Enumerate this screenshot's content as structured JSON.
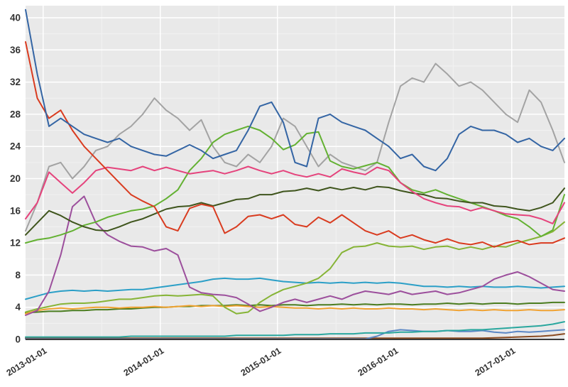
{
  "chart_data": {
    "type": "line",
    "title": "",
    "xlabel": "",
    "ylabel": "",
    "grid": true,
    "legend": "none",
    "styles": {
      "plot_background": "#e9e9e9",
      "grid_major": "#ffffff",
      "grid_minor": "#f2f2f2",
      "axis_line": "#3a3a3a",
      "tick_label_color": "#333333"
    },
    "x_axis": {
      "range": [
        2012.85,
        2017.45
      ],
      "tick_values": [
        2013,
        2014,
        2015,
        2016,
        2017
      ],
      "tick_labels": [
        "2013-01-01",
        "2014-01-01",
        "2015-01-01",
        "2016-01-01",
        "2017-01-01"
      ],
      "minor_tick_values": [
        2013.5,
        2014.5,
        2015.5,
        2016.5
      ]
    },
    "y_axis": {
      "range": [
        0,
        41.5
      ],
      "tick_values": [
        0,
        4,
        8,
        12,
        16,
        20,
        24,
        28,
        32,
        36,
        40
      ],
      "tick_labels": [
        "0",
        "4",
        "8",
        "12",
        "16",
        "20",
        "24",
        "28",
        "32",
        "36",
        "40"
      ],
      "minor_tick_values": [
        2,
        6,
        10,
        14,
        18,
        22,
        26,
        30,
        34,
        38
      ]
    },
    "x": [
      2012.85,
      2012.95,
      2013.05,
      2013.15,
      2013.25,
      2013.35,
      2013.45,
      2013.55,
      2013.65,
      2013.75,
      2013.85,
      2013.95,
      2014.05,
      2014.15,
      2014.25,
      2014.35,
      2014.45,
      2014.55,
      2014.65,
      2014.75,
      2014.85,
      2014.95,
      2015.05,
      2015.15,
      2015.25,
      2015.35,
      2015.45,
      2015.55,
      2015.65,
      2015.75,
      2015.85,
      2015.95,
      2016.05,
      2016.15,
      2016.25,
      2016.35,
      2016.45,
      2016.55,
      2016.65,
      2016.75,
      2016.85,
      2016.95,
      2017.05,
      2017.15,
      2017.25,
      2017.35,
      2017.45
    ],
    "series": [
      {
        "name": "brown",
        "color": "#8a4a1f",
        "values": [
          0.15,
          0.15,
          0.15,
          0.15,
          0.15,
          0.15,
          0.15,
          0.15,
          0.15,
          0.15,
          0.15,
          0.15,
          0.15,
          0.15,
          0.15,
          0.15,
          0.15,
          0.15,
          0.15,
          0.15,
          0.15,
          0.15,
          0.15,
          0.15,
          0.15,
          0.15,
          0.15,
          0.15,
          0.15,
          0.15,
          0.15,
          0.15,
          0.15,
          0.15,
          0.15,
          0.15,
          0.15,
          0.15,
          0.15,
          0.15,
          0.2,
          0.25,
          0.3,
          0.35,
          0.4,
          0.5,
          0.7
        ]
      },
      {
        "name": "light-blue",
        "color": "#5b87c5",
        "values": [
          0.05,
          0.05,
          0.05,
          0.05,
          0.05,
          0.05,
          0.05,
          0.05,
          0.05,
          0.05,
          0.05,
          0.05,
          0.05,
          0.05,
          0.05,
          0.05,
          0.05,
          0.05,
          0.05,
          0.05,
          0.05,
          0.05,
          0.05,
          0.05,
          0.05,
          0.05,
          0.05,
          0.05,
          0.05,
          0.05,
          0.4,
          1.0,
          1.2,
          1.1,
          1.0,
          1.0,
          1.1,
          1.0,
          1.0,
          1.1,
          0.9,
          0.8,
          1.0,
          0.9,
          1.0,
          1.1,
          1.2
        ]
      },
      {
        "name": "teal",
        "color": "#2aa79e",
        "values": [
          0.3,
          0.3,
          0.3,
          0.3,
          0.3,
          0.3,
          0.3,
          0.3,
          0.3,
          0.4,
          0.4,
          0.4,
          0.4,
          0.4,
          0.4,
          0.4,
          0.4,
          0.4,
          0.5,
          0.5,
          0.5,
          0.5,
          0.5,
          0.6,
          0.6,
          0.6,
          0.7,
          0.7,
          0.7,
          0.8,
          0.8,
          0.8,
          0.9,
          0.9,
          1.0,
          1.0,
          1.1,
          1.1,
          1.2,
          1.2,
          1.3,
          1.4,
          1.5,
          1.6,
          1.7,
          1.9,
          2.2
        ]
      },
      {
        "name": "forest-green",
        "color": "#4b7d20",
        "values": [
          3.3,
          3.4,
          3.5,
          3.5,
          3.6,
          3.6,
          3.7,
          3.7,
          3.8,
          3.8,
          3.9,
          4.0,
          4.0,
          4.1,
          4.1,
          4.2,
          4.2,
          4.2,
          4.3,
          4.2,
          4.3,
          4.2,
          4.3,
          4.3,
          4.2,
          4.3,
          4.3,
          4.4,
          4.3,
          4.4,
          4.3,
          4.4,
          4.4,
          4.3,
          4.4,
          4.4,
          4.5,
          4.4,
          4.5,
          4.4,
          4.5,
          4.5,
          4.4,
          4.5,
          4.5,
          4.6,
          4.6
        ]
      },
      {
        "name": "orange",
        "color": "#f0a232",
        "values": [
          3.2,
          3.6,
          3.8,
          3.9,
          3.8,
          3.9,
          4.0,
          4.0,
          3.9,
          4.0,
          4.0,
          4.1,
          4.0,
          4.1,
          4.2,
          4.1,
          4.2,
          4.1,
          4.2,
          4.1,
          4.0,
          4.1,
          4.0,
          3.9,
          3.9,
          3.8,
          3.9,
          3.8,
          3.9,
          3.8,
          3.8,
          3.9,
          3.8,
          3.8,
          3.7,
          3.8,
          3.7,
          3.6,
          3.7,
          3.6,
          3.7,
          3.6,
          3.6,
          3.7,
          3.6,
          3.6,
          3.7
        ]
      },
      {
        "name": "cyan",
        "color": "#2b9fc7",
        "values": [
          5.0,
          5.4,
          5.8,
          6.0,
          6.1,
          6.0,
          6.1,
          6.0,
          6.1,
          6.2,
          6.2,
          6.4,
          6.6,
          6.8,
          7.0,
          7.2,
          7.5,
          7.6,
          7.5,
          7.5,
          7.6,
          7.4,
          7.2,
          7.1,
          7.0,
          7.1,
          7.0,
          7.1,
          7.0,
          7.1,
          7.0,
          7.1,
          7.0,
          6.8,
          6.6,
          6.6,
          6.5,
          6.6,
          6.5,
          6.6,
          6.5,
          6.5,
          6.6,
          6.5,
          6.4,
          6.5,
          6.6
        ]
      },
      {
        "name": "yellow-green",
        "color": "#86b436",
        "values": [
          3.4,
          3.8,
          4.1,
          4.4,
          4.5,
          4.5,
          4.6,
          4.8,
          5.0,
          5.0,
          5.2,
          5.4,
          5.5,
          5.4,
          5.5,
          5.6,
          5.4,
          4.0,
          3.2,
          3.4,
          4.6,
          5.5,
          6.2,
          6.6,
          7.0,
          7.6,
          8.8,
          10.8,
          11.5,
          11.6,
          12.0,
          11.6,
          11.5,
          11.6,
          11.2,
          11.5,
          11.6,
          11.2,
          11.5,
          11.2,
          11.6,
          11.5,
          12.0,
          12.4,
          12.8,
          13.4,
          14.6
        ]
      },
      {
        "name": "purple",
        "color": "#9c4f9c",
        "values": [
          3.0,
          3.6,
          6.0,
          10.5,
          16.5,
          17.8,
          14.5,
          13.0,
          12.2,
          11.6,
          11.5,
          11.0,
          11.3,
          10.5,
          6.5,
          5.8,
          5.6,
          5.5,
          5.2,
          4.4,
          3.5,
          4.0,
          4.6,
          5.0,
          4.6,
          5.0,
          5.4,
          5.0,
          5.6,
          6.0,
          5.8,
          5.6,
          6.0,
          5.6,
          5.8,
          6.0,
          5.6,
          5.8,
          6.2,
          6.6,
          7.5,
          8.0,
          8.4,
          7.8,
          7.0,
          6.2,
          6.0
        ]
      },
      {
        "name": "gray",
        "color": "#a3a3a3",
        "values": [
          13.5,
          17.0,
          21.5,
          22.0,
          20.0,
          21.5,
          23.5,
          24.0,
          25.5,
          26.5,
          28.0,
          30.0,
          28.5,
          27.5,
          26.0,
          27.3,
          24.0,
          22.0,
          21.5,
          23.0,
          22.0,
          24.0,
          27.5,
          26.5,
          24.0,
          21.5,
          23.0,
          22.0,
          21.5,
          21.0,
          22.0,
          27.0,
          31.5,
          32.5,
          32.0,
          34.3,
          33.0,
          31.5,
          32.0,
          31.0,
          29.5,
          28.0,
          27.0,
          31.0,
          29.5,
          26.0,
          22.0
        ]
      },
      {
        "name": "green",
        "color": "#63b132",
        "values": [
          12.0,
          12.4,
          12.6,
          13.0,
          13.5,
          14.2,
          14.6,
          15.2,
          15.6,
          16.0,
          16.2,
          16.6,
          17.5,
          18.6,
          21.0,
          22.5,
          24.5,
          25.5,
          26.0,
          26.5,
          26.0,
          25.0,
          23.6,
          24.2,
          25.6,
          25.8,
          22.2,
          21.5,
          21.2,
          21.6,
          22.0,
          21.4,
          19.5,
          18.6,
          18.2,
          18.6,
          18.0,
          17.5,
          17.0,
          16.5,
          16.0,
          15.4,
          15.0,
          14.0,
          12.8,
          13.6,
          18.0
        ]
      },
      {
        "name": "dark-olive",
        "color": "#3f551d",
        "values": [
          13.0,
          14.5,
          16.0,
          15.4,
          14.6,
          14.0,
          13.6,
          13.5,
          14.0,
          14.6,
          15.0,
          15.6,
          16.2,
          16.5,
          16.6,
          17.0,
          16.6,
          17.0,
          17.4,
          17.5,
          18.0,
          18.0,
          18.4,
          18.5,
          18.8,
          18.5,
          18.9,
          18.6,
          18.9,
          18.6,
          19.0,
          18.9,
          18.5,
          18.2,
          18.0,
          17.6,
          17.5,
          17.2,
          17.0,
          17.0,
          16.6,
          16.5,
          16.2,
          16.0,
          16.4,
          17.0,
          18.8
        ]
      },
      {
        "name": "pink",
        "color": "#e5437c",
        "values": [
          15.0,
          17.0,
          20.8,
          19.5,
          18.2,
          19.5,
          21.0,
          21.4,
          21.2,
          21.0,
          21.5,
          21.0,
          21.4,
          21.0,
          20.6,
          20.8,
          21.0,
          20.6,
          21.0,
          21.5,
          21.0,
          20.6,
          21.0,
          20.5,
          20.2,
          20.6,
          20.2,
          21.2,
          20.8,
          20.5,
          21.4,
          21.0,
          19.5,
          18.4,
          17.5,
          17.0,
          16.6,
          16.5,
          16.0,
          16.4,
          16.0,
          15.6,
          15.5,
          15.4,
          15.0,
          14.4,
          17.0
        ]
      },
      {
        "name": "red",
        "color": "#d93b1f",
        "values": [
          37.0,
          30.0,
          27.5,
          28.5,
          26.0,
          24.0,
          22.5,
          21.0,
          19.5,
          18.0,
          17.2,
          16.5,
          14.0,
          13.5,
          16.3,
          16.8,
          16.5,
          13.2,
          14.0,
          15.3,
          15.5,
          15.0,
          15.5,
          14.3,
          14.0,
          15.2,
          14.5,
          15.5,
          14.5,
          13.5,
          13.0,
          13.5,
          12.6,
          13.0,
          12.4,
          12.0,
          12.5,
          12.0,
          11.8,
          12.1,
          11.5,
          12.0,
          12.3,
          11.8,
          12.0,
          12.0,
          12.6
        ]
      },
      {
        "name": "blue",
        "color": "#3465a4",
        "values": [
          41.0,
          33.0,
          26.5,
          27.5,
          26.5,
          25.5,
          25.0,
          24.5,
          25.0,
          24.0,
          23.5,
          23.0,
          22.8,
          23.5,
          24.2,
          23.5,
          22.5,
          23.0,
          23.5,
          26.0,
          29.0,
          29.5,
          27.0,
          22.0,
          21.5,
          27.5,
          28.0,
          27.0,
          26.5,
          26.0,
          25.0,
          24.0,
          22.5,
          23.0,
          21.5,
          21.0,
          22.5,
          25.5,
          26.5,
          26.0,
          26.0,
          25.5,
          24.5,
          25.0,
          24.0,
          23.5,
          25.0
        ]
      }
    ]
  }
}
